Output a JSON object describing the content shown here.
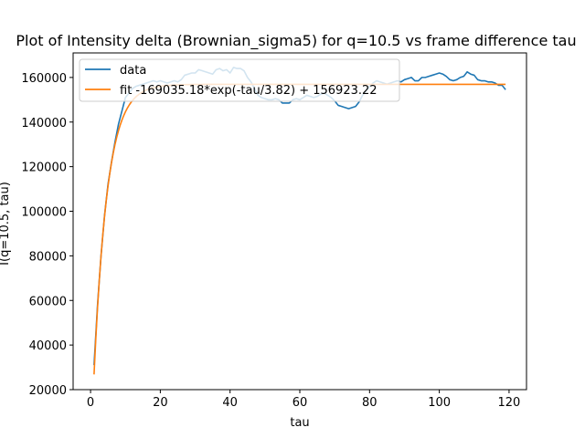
{
  "chart_data": {
    "type": "line",
    "title": "Plot of Intensity delta (Brownian_sigma5) for q=10.5 vs frame difference tau",
    "xlabel": "tau",
    "ylabel": "I(q=10.5, tau)",
    "xlim": [
      -5,
      125
    ],
    "ylim": [
      20000,
      171000
    ],
    "xticks": [
      0,
      20,
      40,
      60,
      80,
      100,
      120
    ],
    "yticks": [
      20000,
      40000,
      60000,
      80000,
      100000,
      120000,
      140000,
      160000
    ],
    "grid": false,
    "legend_position": "top-left",
    "series": [
      {
        "name": "data",
        "color": "#1f77b4",
        "x": [
          1,
          2,
          3,
          4,
          5,
          6,
          7,
          8,
          9,
          10,
          11,
          12,
          13,
          14,
          15,
          16,
          17,
          18,
          19,
          20,
          21,
          22,
          23,
          24,
          25,
          26,
          27,
          28,
          29,
          30,
          31,
          32,
          33,
          34,
          35,
          36,
          37,
          38,
          39,
          40,
          41,
          42,
          43,
          44,
          45,
          46,
          47,
          48,
          49,
          50,
          51,
          52,
          53,
          54,
          55,
          56,
          57,
          58,
          59,
          60,
          61,
          62,
          63,
          64,
          65,
          66,
          67,
          68,
          69,
          70,
          71,
          72,
          73,
          74,
          75,
          76,
          77,
          78,
          79,
          80,
          81,
          82,
          83,
          84,
          85,
          86,
          87,
          88,
          89,
          90,
          91,
          92,
          93,
          94,
          95,
          96,
          97,
          98,
          99,
          100,
          101,
          102,
          103,
          104,
          105,
          106,
          107,
          108,
          109,
          110,
          111,
          112,
          113,
          114,
          115,
          116,
          117,
          118,
          119
        ],
        "y": [
          31000,
          58000,
          80000,
          98000,
          112000,
          122000,
          131000,
          139000,
          145000,
          151000,
          153000,
          155000,
          156000,
          156500,
          157000,
          157500,
          158000,
          158500,
          158000,
          158500,
          158000,
          157500,
          158000,
          158500,
          158000,
          159000,
          161000,
          161500,
          162000,
          162000,
          163500,
          163000,
          162500,
          162000,
          161500,
          163500,
          164000,
          163000,
          163500,
          162000,
          164500,
          164000,
          164000,
          163000,
          160000,
          158000,
          155000,
          152000,
          151000,
          150500,
          150000,
          150000,
          150500,
          150000,
          148500,
          148500,
          148500,
          150000,
          150500,
          150000,
          151000,
          152000,
          151500,
          151000,
          151500,
          152500,
          153000,
          152000,
          151000,
          149500,
          147500,
          147000,
          146500,
          146000,
          146500,
          147000,
          149000,
          152000,
          154000,
          156000,
          157500,
          158500,
          158000,
          157500,
          157000,
          157500,
          158000,
          158500,
          158000,
          159000,
          159500,
          160000,
          158500,
          158500,
          160000,
          160000,
          160500,
          161000,
          161500,
          162000,
          161500,
          160500,
          159000,
          158500,
          159000,
          160000,
          160500,
          162500,
          161500,
          161000,
          159000,
          158500,
          158500,
          158000,
          158000,
          157500,
          156500,
          156500,
          154500
        ]
      },
      {
        "name": "fit -169035.18*exp(-tau/3.82) + 156923.22",
        "color": "#ff7f0e",
        "function": {
          "a": -169035.18,
          "tau0": 3.82,
          "c": 156923.22
        },
        "x_range": [
          1,
          119
        ]
      }
    ]
  }
}
